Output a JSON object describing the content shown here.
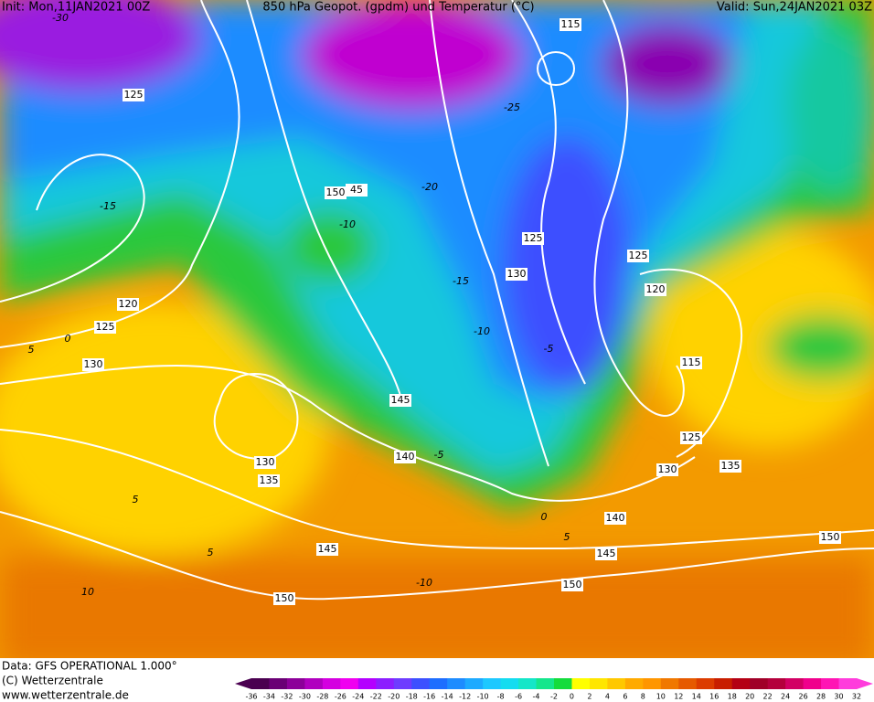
{
  "header": {
    "init": "Init: Mon,11JAN2021 00Z",
    "title": "850 hPa Geopot. (gpdm) und Temperatur (°C)",
    "valid": "Valid: Sun,24JAN2021 03Z"
  },
  "geopotential_labels": [
    "115",
    "125",
    "150",
    "45",
    "125",
    "130",
    "125",
    "120",
    "120",
    "125",
    "130",
    "115",
    "145",
    "140",
    "125",
    "130",
    "135",
    "130",
    "135",
    "140",
    "145",
    "145",
    "150",
    "150",
    "150"
  ],
  "temperature_labels": [
    "-30",
    "-20",
    "-10",
    "-15",
    "-10",
    "-5",
    "5",
    "0",
    "-5",
    "5",
    "5",
    "-10",
    "10",
    "0",
    "5",
    "-15",
    "-25"
  ],
  "footer": {
    "data": "Data: GFS OPERATIONAL 1.000°",
    "copyright": "(C) Wetterzentrale",
    "url": "www.wetterzentrale.de"
  },
  "scale": {
    "labels": [
      -36,
      -34,
      -32,
      -30,
      -28,
      -26,
      -24,
      -22,
      -20,
      -18,
      -16,
      -14,
      -12,
      -10,
      -8,
      -6,
      -4,
      -2,
      0,
      2,
      4,
      6,
      8,
      10,
      12,
      14,
      16,
      18,
      20,
      22,
      24,
      26,
      28,
      30,
      32
    ],
    "colors": [
      "#4a0050",
      "#6a0075",
      "#8c0099",
      "#b000bf",
      "#d400e0",
      "#f000f0",
      "#b400ff",
      "#8c1eff",
      "#6e3cff",
      "#3c50ff",
      "#1e6eff",
      "#1e8cff",
      "#1eaaff",
      "#1ec8ff",
      "#14dcf0",
      "#14e6c8",
      "#14e68c",
      "#14dc3c",
      "#ffff00",
      "#ffe600",
      "#ffc800",
      "#ffaa00",
      "#ff9600",
      "#f07800",
      "#e65a00",
      "#dc3c00",
      "#c81e00",
      "#b40014",
      "#a00028",
      "#b4003c",
      "#d20064",
      "#f0008c",
      "#ff14b4",
      "#ff3cdc"
    ]
  }
}
